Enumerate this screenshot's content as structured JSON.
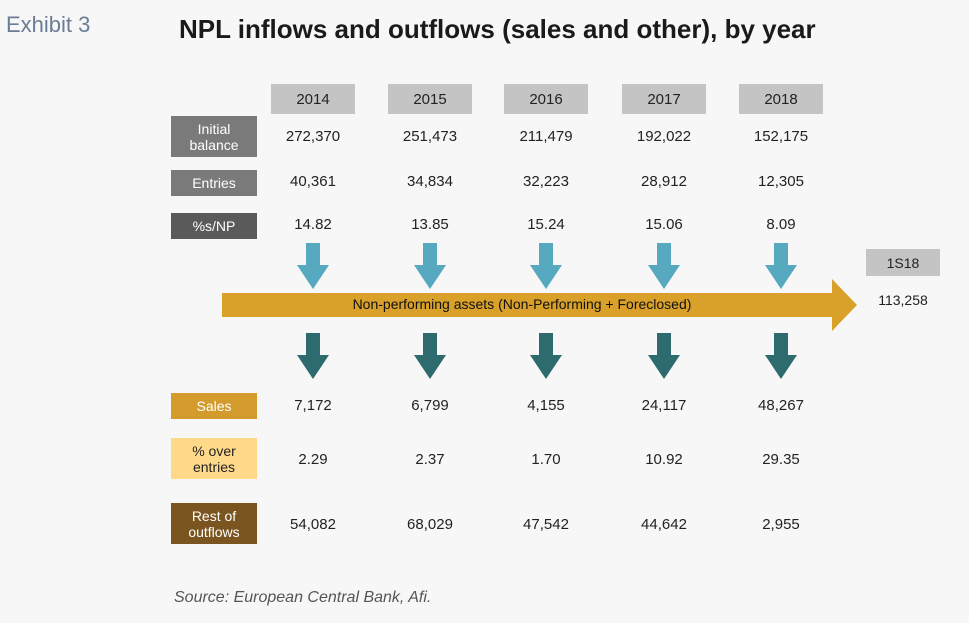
{
  "exhibit_label": "Exhibit 3",
  "title": "NPL inflows and outflows (sales and other), by year",
  "years": [
    "2014",
    "2015",
    "2016",
    "2017",
    "2018"
  ],
  "rows": {
    "initial_balance": {
      "label": "Initial balance",
      "values": [
        "272,370",
        "251,473",
        "211,479",
        "192,022",
        "152,175"
      ],
      "color": "#7a7a7a"
    },
    "entries": {
      "label": "Entries",
      "values": [
        "40,361",
        "34,834",
        "32,223",
        "28,912",
        "12,305"
      ],
      "color": "#7a7a7a"
    },
    "pct_np": {
      "label": "%s/NP",
      "values": [
        "14.82",
        "13.85",
        "15.24",
        "15.06",
        "8.09"
      ],
      "color": "#5a5a5a"
    },
    "sales": {
      "label": "Sales",
      "values": [
        "7,172",
        "6,799",
        "4,155",
        "24,117",
        "48,267"
      ],
      "color": "#d39b2c"
    },
    "pct_over_entries": {
      "label": "% over entries",
      "values": [
        "2.29",
        "2.37",
        "1.70",
        "10.92",
        "29.35"
      ],
      "color": "#ffd98a"
    },
    "rest_of_outflows": {
      "label": "Rest of outflows",
      "values": [
        "54,082",
        "68,029",
        "47,542",
        "44,642",
        "2,955"
      ],
      "color": "#7a5520"
    }
  },
  "flow": {
    "label": "Non-performing assets (Non-Performing + Foreclosed)",
    "color": "#d9a12a"
  },
  "inflow_arrow_color": "#56a9bf",
  "outflow_arrow_color": "#2e6b6f",
  "latest": {
    "period": "1S18",
    "value": "113,258"
  },
  "source": "Source: European Central Bank, Afi."
}
